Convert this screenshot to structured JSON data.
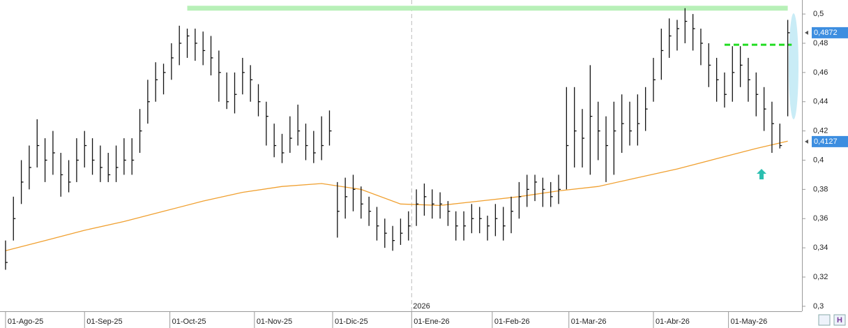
{
  "chart_data": {
    "type": "ohlc",
    "bar_color": "#111111",
    "close": [
      0.33,
      0.36,
      0.385,
      0.395,
      0.41,
      0.4,
      0.405,
      0.39,
      0.385,
      0.4,
      0.41,
      0.4,
      0.395,
      0.39,
      0.395,
      0.4,
      0.4,
      0.42,
      0.44,
      0.455,
      0.46,
      0.47,
      0.48,
      0.485,
      0.48,
      0.475,
      0.47,
      0.46,
      0.44,
      0.445,
      0.46,
      0.455,
      0.44,
      0.43,
      0.41,
      0.405,
      0.415,
      0.42,
      0.41,
      0.405,
      0.41,
      0.42,
      0.365,
      0.375,
      0.38,
      0.37,
      0.365,
      0.355,
      0.35,
      0.345,
      0.35,
      0.355,
      0.37,
      0.375,
      0.37,
      0.37,
      0.365,
      0.355,
      0.355,
      0.36,
      0.36,
      0.355,
      0.36,
      0.355,
      0.365,
      0.375,
      0.38,
      0.385,
      0.38,
      0.375,
      0.38,
      0.41,
      0.42,
      0.415,
      0.43,
      0.42,
      0.41,
      0.42,
      0.425,
      0.42,
      0.425,
      0.435,
      0.455,
      0.475,
      0.485,
      0.49,
      0.495,
      0.49,
      0.48,
      0.465,
      0.455,
      0.445,
      0.46,
      0.465,
      0.455,
      0.445,
      0.435,
      0.425,
      0.41,
      0.4872
    ],
    "high": [
      0.345,
      0.375,
      0.4,
      0.41,
      0.428,
      0.415,
      0.42,
      0.405,
      0.4,
      0.415,
      0.42,
      0.415,
      0.41,
      0.405,
      0.41,
      0.415,
      0.415,
      0.435,
      0.455,
      0.467,
      0.466,
      0.48,
      0.492,
      0.49,
      0.49,
      0.488,
      0.485,
      0.475,
      0.46,
      0.46,
      0.47,
      0.465,
      0.452,
      0.44,
      0.425,
      0.418,
      0.43,
      0.438,
      0.425,
      0.42,
      0.43,
      0.434,
      0.385,
      0.388,
      0.39,
      0.382,
      0.375,
      0.368,
      0.36,
      0.355,
      0.36,
      0.365,
      0.38,
      0.384,
      0.38,
      0.378,
      0.372,
      0.365,
      0.365,
      0.37,
      0.368,
      0.362,
      0.37,
      0.368,
      0.375,
      0.385,
      0.39,
      0.39,
      0.388,
      0.385,
      0.39,
      0.45,
      0.45,
      0.435,
      0.465,
      0.44,
      0.43,
      0.44,
      0.445,
      0.44,
      0.445,
      0.45,
      0.47,
      0.49,
      0.497,
      0.496,
      0.504,
      0.5,
      0.49,
      0.48,
      0.47,
      0.46,
      0.478,
      0.478,
      0.47,
      0.46,
      0.45,
      0.44,
      0.425,
      0.496
    ],
    "low": [
      0.325,
      0.345,
      0.37,
      0.38,
      0.395,
      0.385,
      0.39,
      0.375,
      0.378,
      0.385,
      0.395,
      0.39,
      0.385,
      0.385,
      0.385,
      0.39,
      0.39,
      0.405,
      0.425,
      0.44,
      0.445,
      0.455,
      0.465,
      0.47,
      0.468,
      0.465,
      0.458,
      0.44,
      0.435,
      0.432,
      0.445,
      0.44,
      0.43,
      0.41,
      0.402,
      0.398,
      0.405,
      0.41,
      0.4,
      0.398,
      0.4,
      0.41,
      0.347,
      0.36,
      0.365,
      0.36,
      0.355,
      0.345,
      0.34,
      0.338,
      0.342,
      0.345,
      0.355,
      0.362,
      0.36,
      0.36,
      0.355,
      0.345,
      0.345,
      0.35,
      0.35,
      0.345,
      0.348,
      0.345,
      0.35,
      0.36,
      0.368,
      0.372,
      0.368,
      0.368,
      0.37,
      0.38,
      0.395,
      0.395,
      0.39,
      0.4,
      0.385,
      0.39,
      0.405,
      0.41,
      0.41,
      0.42,
      0.44,
      0.455,
      0.47,
      0.475,
      0.48,
      0.475,
      0.465,
      0.45,
      0.44,
      0.436,
      0.44,
      0.45,
      0.44,
      0.43,
      0.42,
      0.405,
      0.408,
      0.43
    ],
    "moving_average": {
      "color": "#f0a030",
      "x": [
        0,
        5,
        10,
        15,
        20,
        25,
        30,
        35,
        40,
        45,
        50,
        55,
        60,
        65,
        70,
        75,
        80,
        85,
        90,
        95,
        99
      ],
      "values": [
        0.338,
        0.345,
        0.352,
        0.358,
        0.365,
        0.372,
        0.378,
        0.382,
        0.384,
        0.38,
        0.37,
        0.369,
        0.372,
        0.375,
        0.379,
        0.382,
        0.388,
        0.394,
        0.401,
        0.408,
        0.413
      ]
    },
    "levels": [
      {
        "value": 0.504,
        "from": 23,
        "to": 99,
        "color": "#b8f0b8",
        "dashed": false
      },
      {
        "value": 0.479,
        "from": 91,
        "to": 99.5,
        "color": "#22dd22",
        "dashed": true
      }
    ],
    "price_labels": [
      {
        "value": 0.4872,
        "label": "0,4872",
        "color": "#3d8ee0"
      },
      {
        "value": 0.4127,
        "label": "0,4127",
        "color": "#3d8ee0"
      }
    ],
    "xlim": [
      -0.7,
      100.8
    ],
    "xticks": [
      {
        "value": 0,
        "label": "01-Ago-25"
      },
      {
        "value": 10,
        "label": "01-Sep-25"
      },
      {
        "value": 20.8,
        "label": "01-Oct-25"
      },
      {
        "value": 31.5,
        "label": "01-Nov-25"
      },
      {
        "value": 41.4,
        "label": "01-Dic-25"
      },
      {
        "value": 51.4,
        "label": "01-Ene-26"
      },
      {
        "value": 61.6,
        "label": "01-Feb-26"
      },
      {
        "value": 71.3,
        "label": "01-Mar-26"
      },
      {
        "value": 82,
        "label": "01-Abr-26"
      },
      {
        "value": 91.5,
        "label": "01-May-26"
      }
    ],
    "year_label": "2026",
    "ylim": [
      0.2966,
      0.5096
    ],
    "yticks": [
      {
        "value": 0.3,
        "label": "0,3"
      },
      {
        "value": 0.32,
        "label": "0,32"
      },
      {
        "value": 0.34,
        "label": "0,34"
      },
      {
        "value": 0.36,
        "label": "0,36"
      },
      {
        "value": 0.38,
        "label": "0,38"
      },
      {
        "value": 0.4,
        "label": "0,4"
      },
      {
        "value": 0.42,
        "label": "0,42"
      },
      {
        "value": 0.44,
        "label": "0,44"
      },
      {
        "value": 0.46,
        "label": "0,46"
      },
      {
        "value": 0.48,
        "label": "0,48"
      },
      {
        "value": 0.5,
        "label": "0,5"
      }
    ]
  }
}
